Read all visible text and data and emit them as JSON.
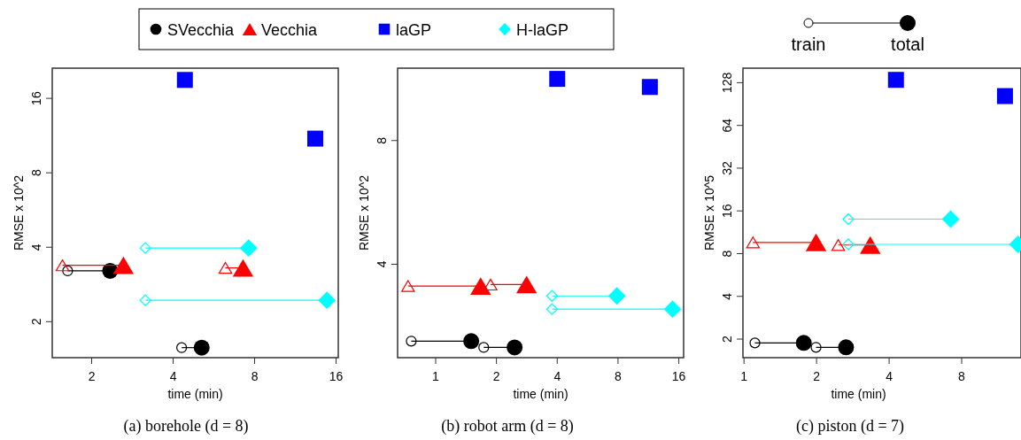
{
  "chart_data": [
    {
      "type": "line",
      "title": "(a) borehole (d = 8)",
      "xlabel": "time (min)",
      "ylabel": "RMSE x 10^2",
      "log": "xy",
      "xlim": [
        1.43,
        16.3
      ],
      "ylim": [
        1.43,
        21.2
      ],
      "xticks": [
        2,
        4,
        8,
        16
      ],
      "yticks": [
        2,
        4,
        8,
        16
      ],
      "legend": "top",
      "series": [
        {
          "name": "SVecchia",
          "color": "#000000",
          "marker": "circle",
          "x": [
            1.63,
            2.34
          ],
          "values": [
            3.21,
            3.21
          ]
        },
        {
          "color": "#000000",
          "marker": "circle",
          "x": [
            4.3,
            5.1
          ],
          "values": [
            1.57,
            1.57
          ]
        },
        {
          "name": "Vecchia",
          "color": "#ff0000",
          "marker": "triangle",
          "x": [
            1.56,
            2.62
          ],
          "values": [
            3.38,
            3.38
          ]
        },
        {
          "color": "#ff0000",
          "marker": "triangle",
          "x": [
            6.24,
            7.25
          ],
          "values": [
            3.3,
            3.3
          ]
        },
        {
          "name": "laGP",
          "type": "scatter",
          "color": "#0000ff",
          "marker": "square",
          "x": [
            4.42,
            13.4
          ],
          "values": [
            19.0,
            11.0
          ]
        },
        {
          "name": "H-laGP",
          "color": "#00ffff",
          "marker": "diamond",
          "x": [
            3.16,
            7.6
          ],
          "values": [
            3.97,
            3.97
          ]
        },
        {
          "color": "#00ffff",
          "marker": "diamond",
          "x": [
            3.16,
            14.8
          ],
          "values": [
            2.44,
            2.44
          ]
        }
      ]
    },
    {
      "type": "line",
      "title": "(b) robot arm (d = 8)",
      "xlabel": "time (min)",
      "ylabel": "RMSE x 10^2",
      "log": "xy",
      "xlim": [
        0.648,
        16.9
      ],
      "ylim": [
        2.37,
        12.0
      ],
      "xticks": [
        1,
        2,
        4,
        8,
        16
      ],
      "yticks": [
        4,
        8
      ],
      "series": [
        {
          "color": "#000000",
          "marker": "circle",
          "x": [
            0.757,
            1.5
          ],
          "values": [
            2.6,
            2.6
          ]
        },
        {
          "color": "#000000",
          "marker": "circle",
          "x": [
            1.73,
            2.46
          ],
          "values": [
            2.51,
            2.51
          ]
        },
        {
          "color": "#ff0000",
          "marker": "triangle",
          "x": [
            0.73,
            1.67
          ],
          "values": [
            3.54,
            3.54
          ]
        },
        {
          "color": "#ff0000",
          "marker": "triangle",
          "x": [
            1.87,
            2.82
          ],
          "values": [
            3.57,
            3.57
          ]
        },
        {
          "type": "scatter",
          "color": "#0000ff",
          "marker": "square",
          "x": [
            4.0,
            11.5
          ],
          "values": [
            11.3,
            10.8
          ]
        },
        {
          "color": "#00ffff",
          "marker": "diamond",
          "x": [
            3.77,
            7.9
          ],
          "values": [
            3.35,
            3.35
          ]
        },
        {
          "color": "#00ffff",
          "marker": "diamond",
          "x": [
            3.77,
            14.9
          ],
          "values": [
            3.11,
            3.11
          ]
        }
      ]
    },
    {
      "type": "line",
      "title": "(c) piston (d = 7)",
      "xlabel": "time (min)",
      "ylabel": "RMSE x 10^5",
      "log": "xy",
      "xlim": [
        0.99,
        14.1
      ],
      "ylim": [
        1.48,
        162
      ],
      "xticks": [
        1,
        2,
        4,
        8
      ],
      "yticks": [
        2,
        4,
        8,
        16,
        32,
        64,
        128
      ],
      "annotations": [
        "train",
        "total"
      ],
      "series": [
        {
          "color": "#000000",
          "marker": "circle",
          "x": [
            1.11,
            1.77
          ],
          "values": [
            1.88,
            1.88
          ]
        },
        {
          "color": "#000000",
          "marker": "circle",
          "x": [
            1.99,
            2.65
          ],
          "values": [
            1.75,
            1.75
          ]
        },
        {
          "color": "#ff0000",
          "marker": "triangle",
          "x": [
            1.09,
            1.99
          ],
          "values": [
            9.6,
            9.6
          ]
        },
        {
          "color": "#ff0000",
          "marker": "triangle",
          "x": [
            2.46,
            3.34
          ],
          "values": [
            9.2,
            9.2
          ]
        },
        {
          "type": "scatter",
          "color": "#0000ff",
          "marker": "square",
          "x": [
            4.27,
            12.1
          ],
          "values": [
            134,
            103
          ]
        },
        {
          "color": "#00ffff",
          "marker": "diamond",
          "x": [
            2.71,
            7.2
          ],
          "values": [
            14.0,
            14.0
          ]
        },
        {
          "color": "#00ffff",
          "marker": "diamond",
          "x": [
            2.71,
            13.7
          ],
          "values": [
            9.3,
            9.3
          ]
        }
      ]
    }
  ]
}
